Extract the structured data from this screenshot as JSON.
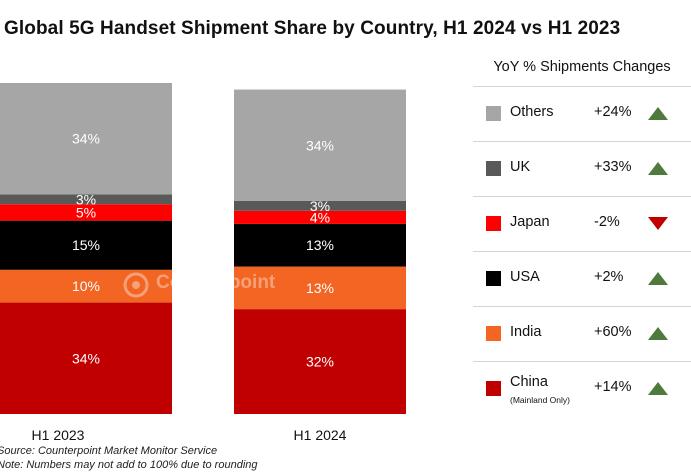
{
  "title": "Global 5G Handset Shipment Share by Country, H1 2024 vs H1 2023",
  "colors": {
    "China": "#c00000",
    "India": "#f26522",
    "USA": "#000000",
    "Japan": "#ff0000",
    "UK": "#595959",
    "Others": "#a6a6a6",
    "arrow_up": "#4e7b3c",
    "arrow_down": "#c00000"
  },
  "chart_data": {
    "type": "bar",
    "stacked": true,
    "title": "Global 5G Handset Shipment Share by Country, H1 2024 vs H1 2023",
    "categories": [
      "H1 2023",
      "H1 2024"
    ],
    "ylim": [
      0,
      100
    ],
    "grid": false,
    "series": [
      {
        "name": "China",
        "values": [
          34,
          32
        ],
        "labels": [
          "34%",
          "32%"
        ]
      },
      {
        "name": "India",
        "values": [
          10,
          13
        ],
        "labels": [
          "10%",
          "13%"
        ]
      },
      {
        "name": "USA",
        "values": [
          15,
          13
        ],
        "labels": [
          "15%",
          "13%"
        ]
      },
      {
        "name": "Japan",
        "values": [
          5,
          4
        ],
        "labels": [
          "5%",
          "4%"
        ]
      },
      {
        "name": "UK",
        "values": [
          3,
          3
        ],
        "labels": [
          "3%",
          "3%"
        ]
      },
      {
        "name": "Others",
        "values": [
          34,
          34
        ],
        "labels": [
          "34%",
          "34%"
        ]
      }
    ]
  },
  "legend": {
    "header": "YoY % Shipments Changes",
    "items": [
      {
        "name": "Others",
        "change": "+24%",
        "direction": "up"
      },
      {
        "name": "UK",
        "change": "+33%",
        "direction": "up"
      },
      {
        "name": "Japan",
        "change": "-2%",
        "direction": "down"
      },
      {
        "name": "USA",
        "change": "+2%",
        "direction": "up"
      },
      {
        "name": "India",
        "change": "+60%",
        "direction": "up"
      },
      {
        "name": "China",
        "sublabel": "(Mainland Only)",
        "change": "+14%",
        "direction": "up"
      }
    ]
  },
  "watermark": "Counterpoint",
  "notes": {
    "source": "Source: Counterpoint Market Monitor Service",
    "rounding": "Note: Numbers may not add to 100% due to rounding"
  }
}
